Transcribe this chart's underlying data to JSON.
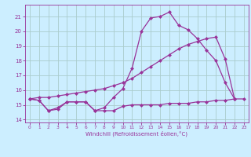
{
  "xlabel": "Windchill (Refroidissement éolien,°C)",
  "xlim": [
    -0.5,
    23.5
  ],
  "ylim": [
    13.8,
    21.8
  ],
  "yticks": [
    14,
    15,
    16,
    17,
    18,
    19,
    20,
    21
  ],
  "xticks": [
    0,
    1,
    2,
    3,
    4,
    5,
    6,
    7,
    8,
    9,
    10,
    11,
    12,
    13,
    14,
    15,
    16,
    17,
    18,
    19,
    20,
    21,
    22,
    23
  ],
  "background_color": "#cceeff",
  "grid_color": "#aacccc",
  "line_color": "#993399",
  "line1_x": [
    0,
    1,
    2,
    3,
    4,
    5,
    6,
    7,
    8,
    9,
    10,
    11,
    12,
    13,
    14,
    15,
    16,
    17,
    18,
    19,
    20,
    21,
    22,
    23
  ],
  "line1_y": [
    15.4,
    15.3,
    14.6,
    14.7,
    15.2,
    15.2,
    15.2,
    14.6,
    14.6,
    14.6,
    14.9,
    15.0,
    15.0,
    15.0,
    15.0,
    15.1,
    15.1,
    15.1,
    15.2,
    15.2,
    15.3,
    15.3,
    15.4,
    15.4
  ],
  "line2_x": [
    0,
    1,
    2,
    3,
    4,
    5,
    6,
    7,
    8,
    9,
    10,
    11,
    12,
    13,
    14,
    15,
    16,
    17,
    18,
    19,
    20,
    21,
    22
  ],
  "line2_y": [
    15.4,
    15.3,
    14.6,
    14.8,
    15.2,
    15.2,
    15.2,
    14.6,
    14.8,
    15.5,
    16.1,
    17.5,
    20.0,
    20.9,
    21.0,
    21.3,
    20.4,
    20.1,
    19.5,
    18.7,
    18.0,
    16.5,
    15.4
  ],
  "line3_x": [
    0,
    1,
    2,
    3,
    4,
    5,
    6,
    7,
    8,
    9,
    10,
    11,
    12,
    13,
    14,
    15,
    16,
    17,
    18,
    19,
    20,
    21,
    22
  ],
  "line3_y": [
    15.4,
    15.5,
    15.5,
    15.6,
    15.7,
    15.8,
    15.9,
    16.0,
    16.1,
    16.3,
    16.5,
    16.8,
    17.2,
    17.6,
    18.0,
    18.4,
    18.8,
    19.1,
    19.3,
    19.5,
    19.6,
    18.1,
    15.4
  ],
  "marker_size": 2.5,
  "linewidth": 0.9
}
